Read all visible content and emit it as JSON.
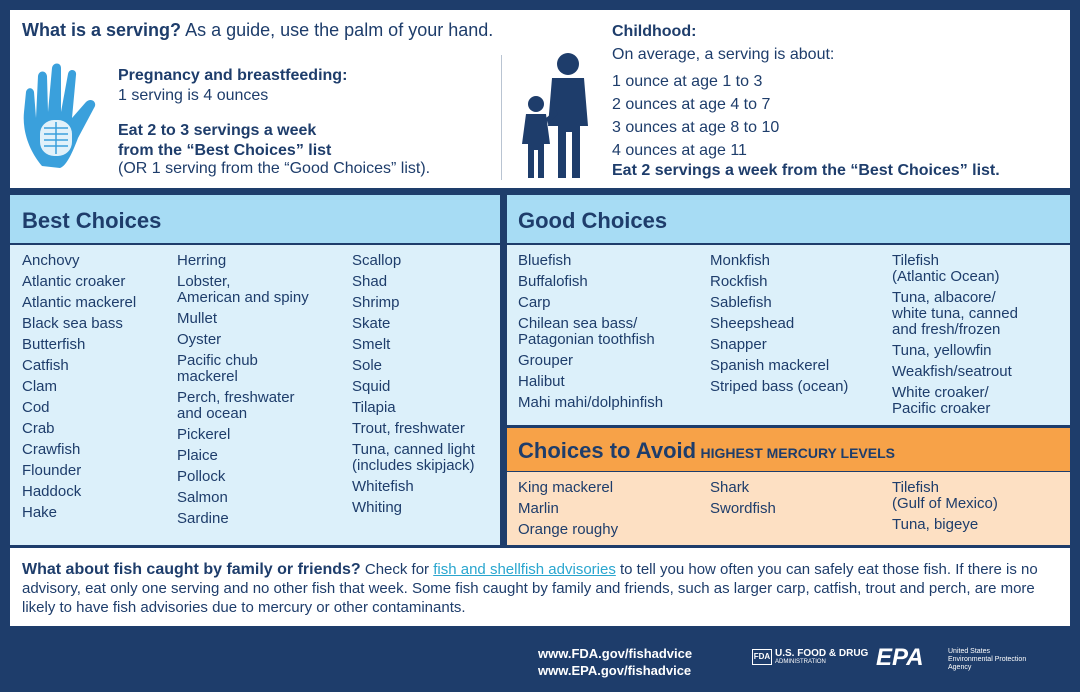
{
  "serving": {
    "heading_bold": "What is a serving?",
    "heading": "As a guide, use the palm of your hand.",
    "pregnancy_title": "Pregnancy and breastfeeding:",
    "pregnancy_text": "1 serving is 4 ounces",
    "eat_bold": "Eat 2 to 3 servings a week\nfrom the “Best Choices” list",
    "eat_note": "(OR 1 serving from the “Good Choices” list)."
  },
  "childhood": {
    "title": "Childhood:",
    "intro": "On average, a serving is about:",
    "ages": [
      "1 ounce at age 1 to 3",
      "2 ounces at age 4 to 7",
      "3 ounces at age 8 to 10",
      "4 ounces at age 11"
    ],
    "note": "Eat 2 servings a week from the “Best Choices” list."
  },
  "best_choices": {
    "title": "Best Choices",
    "columns": [
      [
        "Anchovy",
        "Atlantic croaker",
        "Atlantic mackerel",
        "Black sea bass",
        "Butterfish",
        "Catfish",
        "Clam",
        "Cod",
        "Crab",
        "Crawfish",
        "Flounder",
        "Haddock",
        "Hake"
      ],
      [
        "Herring",
        "Lobster,\nAmerican and spiny",
        "Mullet",
        "Oyster",
        "Pacific chub\nmackerel",
        "Perch, freshwater\nand ocean",
        "Pickerel",
        "Plaice",
        "Pollock",
        "Salmon",
        "Sardine"
      ],
      [
        "Scallop",
        "Shad",
        "Shrimp",
        "Skate",
        "Smelt",
        "Sole",
        "Squid",
        "Tilapia",
        "Trout, freshwater",
        "Tuna, canned light\n(includes skipjack)",
        "Whitefish",
        "Whiting"
      ]
    ]
  },
  "good_choices": {
    "title": "Good Choices",
    "columns": [
      [
        "Bluefish",
        "Buffalofish",
        "Carp",
        "Chilean sea bass/\nPatagonian toothfish",
        "Grouper",
        "Halibut",
        "Mahi mahi/dolphinfish"
      ],
      [
        "Monkfish",
        "Rockfish",
        "Sablefish",
        "Sheepshead",
        "Snapper",
        "Spanish mackerel",
        "Striped bass (ocean)"
      ],
      [
        "Tilefish\n(Atlantic Ocean)",
        "Tuna, albacore/\nwhite tuna, canned\nand fresh/frozen",
        "Tuna, yellowfin",
        "Weakfish/seatrout",
        "White croaker/\nPacific croaker"
      ]
    ]
  },
  "avoid": {
    "title": "Choices to Avoid",
    "subtitle": "HIGHEST MERCURY LEVELS",
    "columns": [
      [
        "King mackerel",
        "Marlin",
        "Orange roughy"
      ],
      [
        "Shark",
        "Swordfish"
      ],
      [
        "Tilefish\n(Gulf of Mexico)",
        "Tuna, bigeye"
      ]
    ]
  },
  "family": {
    "heading": "What about fish caught by family or friends?",
    "before_link": "Check for",
    "link": "fish and shellfish advisories",
    "after_link": "to tell you how often you can safely eat those fish. If there is no advisory, eat only one serving and no other fish that week. Some fish caught by family and friends, such as larger carp, catfish, trout and perch, are more likely to have fish advisories due to mercury or other contaminants."
  },
  "footer": {
    "urls": [
      "www.FDA.gov/fishadvice",
      "www.EPA.gov/fishadvice"
    ],
    "fda_badge": "FDA",
    "fda_name": "U.S. FOOD & DRUG",
    "fda_sub": "ADMINISTRATION",
    "epa": "EPA",
    "epa_sub": "United States\nEnvironmental Protection\nAgency"
  }
}
